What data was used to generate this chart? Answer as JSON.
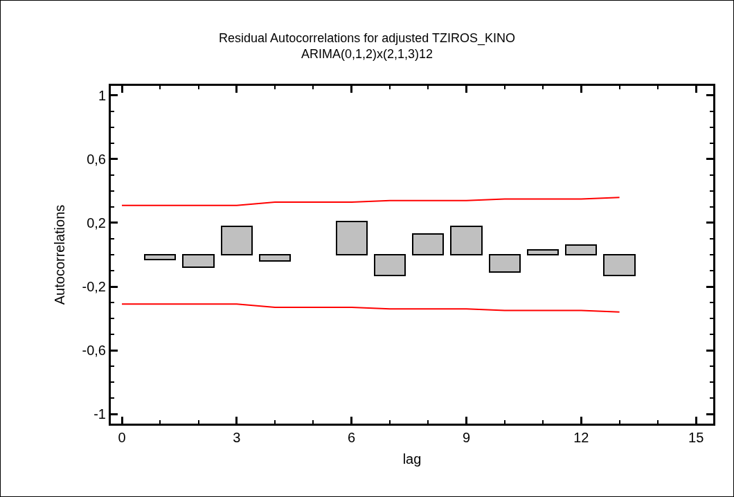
{
  "chart_data": {
    "type": "bar",
    "title": "Residual Autocorrelations for adjusted TZIROS_KINO",
    "subtitle": "ARIMA(0,1,2)x(2,1,3)12",
    "xlabel": "lag",
    "ylabel": "Autocorrelations",
    "x": [
      1,
      2,
      3,
      4,
      5,
      6,
      7,
      8,
      9,
      10,
      11,
      12,
      13
    ],
    "series": [
      {
        "color": "#c0c0c0",
        "values": [
          -0.03,
          -0.08,
          0.18,
          -0.04,
          null,
          0.21,
          -0.13,
          0.13,
          0.18,
          -0.11,
          0.03,
          0.06,
          -0.13
        ]
      },
      {
        "type": "line",
        "color": "#ff0000",
        "x": [
          0,
          1,
          2,
          3,
          4,
          5,
          6,
          7,
          8,
          9,
          10,
          11,
          12,
          13
        ],
        "values": [
          0.31,
          0.31,
          0.31,
          0.31,
          0.33,
          0.33,
          0.33,
          0.34,
          0.34,
          0.34,
          0.35,
          0.35,
          0.35,
          0.36
        ]
      },
      {
        "type": "line",
        "color": "#ff0000",
        "x": [
          0,
          1,
          2,
          3,
          4,
          5,
          6,
          7,
          8,
          9,
          10,
          11,
          12,
          13
        ],
        "values": [
          -0.31,
          -0.31,
          -0.31,
          -0.31,
          -0.33,
          -0.33,
          -0.33,
          -0.34,
          -0.34,
          -0.34,
          -0.35,
          -0.35,
          -0.35,
          -0.36
        ]
      }
    ],
    "xlim": [
      -0.29,
      15.45
    ],
    "xticks": [
      0,
      3,
      6,
      9,
      12,
      15
    ],
    "ylim": [
      -1.06,
      1.06
    ],
    "yticks": [
      {
        "value": -1,
        "label": "-1"
      },
      {
        "value": -0.6,
        "label": "-0,6"
      },
      {
        "value": -0.2,
        "label": "-0,2"
      },
      {
        "value": 0.2,
        "label": "0,2"
      },
      {
        "value": 0.6,
        "label": "0,6"
      },
      {
        "value": 1,
        "label": "1"
      }
    ],
    "line_style": "solid"
  }
}
